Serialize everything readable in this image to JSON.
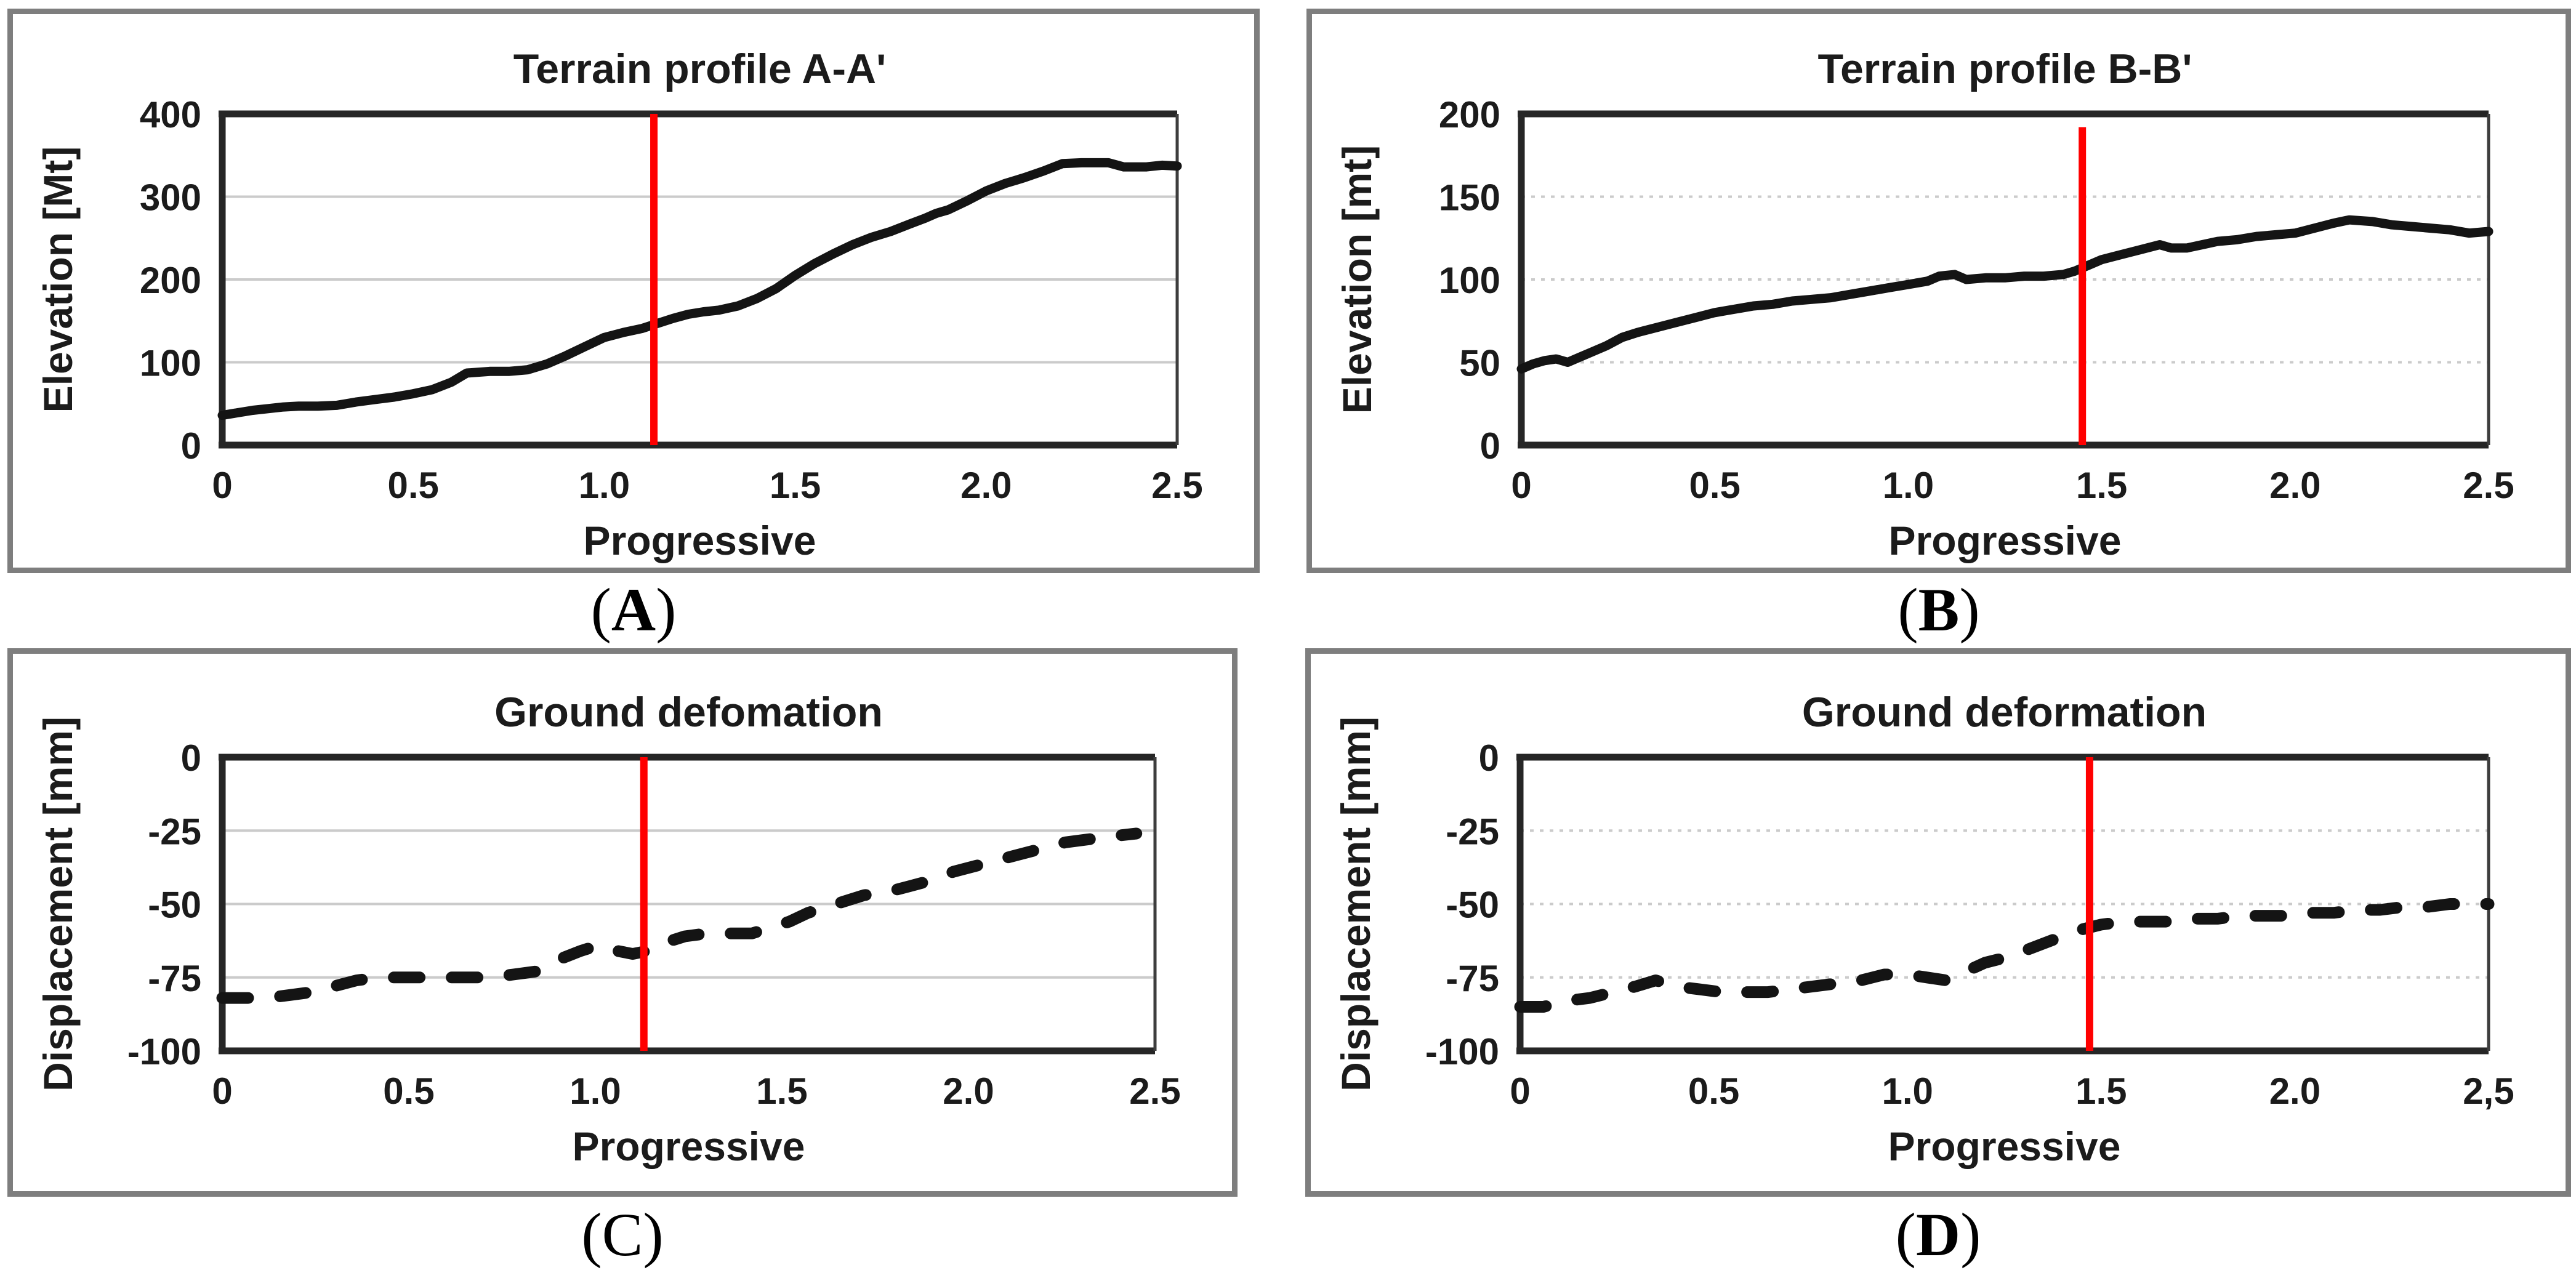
{
  "figure": {
    "background": "#ffffff",
    "panel_border_color": "#7e7e7e",
    "marker_color": "#ff0000",
    "series_color": "#141414"
  },
  "captions": [
    {
      "open": "(",
      "letter": "A",
      "close": ")",
      "bold": true
    },
    {
      "open": "(",
      "letter": "B",
      "close": ")",
      "bold": true
    },
    {
      "open": "(",
      "letter": "C",
      "close": ")",
      "bold": false
    },
    {
      "open": "(",
      "letter": "D",
      "close": ")",
      "bold": true
    }
  ],
  "chart_data": [
    {
      "id": "terrain-profile-a",
      "type": "line",
      "title": "Terrain profile A-A'",
      "xlabel": "Progressive",
      "ylabel": "Elevation [Mt]",
      "xlim": [
        0,
        2.5
      ],
      "ylim": [
        0,
        400
      ],
      "x_tick_values": [
        0,
        0.5,
        1,
        1.5,
        2,
        2.5
      ],
      "x_tick_labels": [
        "0",
        "0.5",
        "1.0",
        "1.5",
        "2.0",
        "2.5"
      ],
      "y_tick_values": [
        0,
        100,
        200,
        300,
        400
      ],
      "y_tick_labels": [
        "0",
        "100",
        "200",
        "300",
        "400"
      ],
      "grid_y": [
        100,
        200,
        300
      ],
      "grid_dotted": false,
      "legend": "none",
      "line_style": "solid",
      "line_color": "#141414",
      "marker_line": {
        "x": 1.13,
        "y1": 400,
        "y2": 0,
        "color": "#ff0000"
      },
      "points": [
        [
          0,
          36
        ],
        [
          0.04,
          39
        ],
        [
          0.08,
          42
        ],
        [
          0.12,
          44
        ],
        [
          0.16,
          46
        ],
        [
          0.2,
          47
        ],
        [
          0.25,
          47
        ],
        [
          0.3,
          48
        ],
        [
          0.35,
          52
        ],
        [
          0.4,
          55
        ],
        [
          0.45,
          58
        ],
        [
          0.5,
          62
        ],
        [
          0.55,
          67
        ],
        [
          0.6,
          76
        ],
        [
          0.64,
          87
        ],
        [
          0.7,
          89
        ],
        [
          0.75,
          89
        ],
        [
          0.8,
          91
        ],
        [
          0.85,
          98
        ],
        [
          0.9,
          108
        ],
        [
          0.95,
          119
        ],
        [
          1,
          130
        ],
        [
          1.05,
          136
        ],
        [
          1.1,
          141
        ],
        [
          1.14,
          147
        ],
        [
          1.18,
          153
        ],
        [
          1.22,
          158
        ],
        [
          1.26,
          161
        ],
        [
          1.3,
          163
        ],
        [
          1.35,
          168
        ],
        [
          1.4,
          177
        ],
        [
          1.45,
          189
        ],
        [
          1.5,
          205
        ],
        [
          1.55,
          219
        ],
        [
          1.6,
          231
        ],
        [
          1.65,
          242
        ],
        [
          1.7,
          251
        ],
        [
          1.75,
          258
        ],
        [
          1.8,
          267
        ],
        [
          1.84,
          274
        ],
        [
          1.87,
          280
        ],
        [
          1.9,
          284
        ],
        [
          1.95,
          295
        ],
        [
          2,
          307
        ],
        [
          2.05,
          316
        ],
        [
          2.1,
          323
        ],
        [
          2.15,
          331
        ],
        [
          2.2,
          340
        ],
        [
          2.25,
          341
        ],
        [
          2.32,
          341
        ],
        [
          2.36,
          336
        ],
        [
          2.42,
          336
        ],
        [
          2.46,
          338
        ],
        [
          2.5,
          337
        ]
      ]
    },
    {
      "id": "terrain-profile-b",
      "type": "line",
      "title": "Terrain profile B-B'",
      "xlabel": "Progressive",
      "ylabel": "Elevation [mt]",
      "xlim": [
        0,
        2.5
      ],
      "ylim": [
        0,
        200
      ],
      "x_tick_values": [
        0,
        0.5,
        1,
        1.5,
        2,
        2.5
      ],
      "x_tick_labels": [
        "0",
        "0.5",
        "1.0",
        "1.5",
        "2.0",
        "2.5"
      ],
      "y_tick_values": [
        0,
        50,
        100,
        150,
        200
      ],
      "y_tick_labels": [
        "0",
        "50",
        "100",
        "150",
        "200"
      ],
      "grid_y": [
        50,
        100,
        150
      ],
      "grid_dotted": true,
      "legend": "none",
      "line_style": "solid",
      "line_color": "#141414",
      "marker_line": {
        "x": 1.45,
        "y1": 192,
        "y2": 0,
        "color": "#ff0000"
      },
      "points": [
        [
          0,
          46
        ],
        [
          0.03,
          49
        ],
        [
          0.06,
          51
        ],
        [
          0.09,
          52
        ],
        [
          0.12,
          50
        ],
        [
          0.15,
          53
        ],
        [
          0.18,
          56
        ],
        [
          0.22,
          60
        ],
        [
          0.26,
          65
        ],
        [
          0.3,
          68
        ],
        [
          0.35,
          71
        ],
        [
          0.4,
          74
        ],
        [
          0.45,
          77
        ],
        [
          0.5,
          80
        ],
        [
          0.55,
          82
        ],
        [
          0.6,
          84
        ],
        [
          0.65,
          85
        ],
        [
          0.7,
          87
        ],
        [
          0.75,
          88
        ],
        [
          0.8,
          89
        ],
        [
          0.85,
          91
        ],
        [
          0.9,
          93
        ],
        [
          0.95,
          95
        ],
        [
          1,
          97
        ],
        [
          1.05,
          99
        ],
        [
          1.08,
          102
        ],
        [
          1.12,
          103
        ],
        [
          1.15,
          100
        ],
        [
          1.2,
          101
        ],
        [
          1.25,
          101
        ],
        [
          1.3,
          102
        ],
        [
          1.35,
          102
        ],
        [
          1.4,
          103
        ],
        [
          1.43,
          105
        ],
        [
          1.47,
          109
        ],
        [
          1.5,
          112
        ],
        [
          1.55,
          115
        ],
        [
          1.6,
          118
        ],
        [
          1.65,
          121
        ],
        [
          1.68,
          119
        ],
        [
          1.72,
          119
        ],
        [
          1.76,
          121
        ],
        [
          1.8,
          123
        ],
        [
          1.85,
          124
        ],
        [
          1.9,
          126
        ],
        [
          1.95,
          127
        ],
        [
          2,
          128
        ],
        [
          2.05,
          131
        ],
        [
          2.1,
          134
        ],
        [
          2.14,
          136
        ],
        [
          2.2,
          135
        ],
        [
          2.25,
          133
        ],
        [
          2.3,
          132
        ],
        [
          2.35,
          131
        ],
        [
          2.4,
          130
        ],
        [
          2.45,
          128
        ],
        [
          2.5,
          129
        ]
      ]
    },
    {
      "id": "ground-deformation-c",
      "type": "line",
      "title": "Ground defomation",
      "xlabel": "Progressive",
      "ylabel": "Displacement [mm]",
      "xlim": [
        0,
        2.5
      ],
      "ylim": [
        -100,
        0
      ],
      "x_tick_values": [
        0,
        0.5,
        1,
        1.5,
        2,
        2.5
      ],
      "x_tick_labels": [
        "0",
        "0.5",
        "1.0",
        "1.5",
        "2.0",
        "2.5"
      ],
      "y_tick_values": [
        0,
        -25,
        -50,
        -75,
        -100
      ],
      "y_tick_labels": [
        "0",
        "-25",
        "-50",
        "-75",
        "-100"
      ],
      "grid_y": [
        -25,
        -50,
        -75
      ],
      "grid_dotted": false,
      "legend": "none",
      "line_style": "dashed",
      "line_color": "#141414",
      "marker_line": {
        "x": 1.13,
        "y1": 0,
        "y2": -100,
        "color": "#ff0000"
      },
      "points": [
        [
          0,
          -82
        ],
        [
          0.06,
          -82
        ],
        [
          0.12,
          -82
        ],
        [
          0.18,
          -81
        ],
        [
          0.24,
          -80
        ],
        [
          0.3,
          -78
        ],
        [
          0.36,
          -76
        ],
        [
          0.42,
          -75
        ],
        [
          0.5,
          -75
        ],
        [
          0.58,
          -75
        ],
        [
          0.66,
          -75
        ],
        [
          0.72,
          -75
        ],
        [
          0.78,
          -74
        ],
        [
          0.84,
          -73
        ],
        [
          0.9,
          -69
        ],
        [
          0.96,
          -66
        ],
        [
          1.01,
          -64
        ],
        [
          1.06,
          -66
        ],
        [
          1.1,
          -67
        ],
        [
          1.14,
          -66
        ],
        [
          1.19,
          -63
        ],
        [
          1.24,
          -61
        ],
        [
          1.3,
          -60
        ],
        [
          1.36,
          -60
        ],
        [
          1.42,
          -60
        ],
        [
          1.47,
          -58
        ],
        [
          1.52,
          -56
        ],
        [
          1.57,
          -53
        ],
        [
          1.62,
          -51
        ],
        [
          1.67,
          -49
        ],
        [
          1.72,
          -47
        ],
        [
          1.78,
          -46
        ],
        [
          1.84,
          -44
        ],
        [
          1.9,
          -42
        ],
        [
          1.96,
          -39
        ],
        [
          2.02,
          -37
        ],
        [
          2.08,
          -35
        ],
        [
          2.14,
          -33
        ],
        [
          2.2,
          -31
        ],
        [
          2.26,
          -29
        ],
        [
          2.32,
          -28
        ],
        [
          2.38,
          -27
        ],
        [
          2.45,
          -26
        ]
      ]
    },
    {
      "id": "ground-deformation-d",
      "type": "line",
      "title": "Ground deformation",
      "xlabel": "Progressive",
      "ylabel": "Displacement [mm]",
      "xlim": [
        0,
        2.5
      ],
      "ylim": [
        -100,
        0
      ],
      "x_tick_values": [
        0,
        0.5,
        1,
        1.5,
        2,
        2.5
      ],
      "x_tick_labels": [
        "0",
        "0.5",
        "1.0",
        "1.5",
        "2.0",
        "2,5"
      ],
      "y_tick_values": [
        0,
        -25,
        -50,
        -75,
        -100
      ],
      "y_tick_labels": [
        "0",
        "-25",
        "-50",
        "-75",
        "-100"
      ],
      "grid_y": [
        -25,
        -50,
        -75
      ],
      "grid_dotted": true,
      "legend": "none",
      "line_style": "dashed",
      "line_color": "#141414",
      "marker_line": {
        "x": 1.47,
        "y1": 0,
        "y2": -100,
        "color": "#ff0000"
      },
      "points": [
        [
          0,
          -85
        ],
        [
          0.06,
          -85
        ],
        [
          0.12,
          -83
        ],
        [
          0.18,
          -82
        ],
        [
          0.24,
          -80
        ],
        [
          0.3,
          -78
        ],
        [
          0.35,
          -76
        ],
        [
          0.4,
          -78
        ],
        [
          0.46,
          -79
        ],
        [
          0.52,
          -80
        ],
        [
          0.58,
          -80
        ],
        [
          0.64,
          -80
        ],
        [
          0.7,
          -79
        ],
        [
          0.76,
          -78
        ],
        [
          0.82,
          -77
        ],
        [
          0.88,
          -76
        ],
        [
          0.94,
          -74
        ],
        [
          1,
          -74
        ],
        [
          1.05,
          -75
        ],
        [
          1.1,
          -76
        ],
        [
          1.15,
          -73
        ],
        [
          1.2,
          -70
        ],
        [
          1.26,
          -68
        ],
        [
          1.32,
          -65
        ],
        [
          1.38,
          -62
        ],
        [
          1.44,
          -59
        ],
        [
          1.5,
          -57
        ],
        [
          1.56,
          -56
        ],
        [
          1.62,
          -56
        ],
        [
          1.68,
          -56
        ],
        [
          1.74,
          -55
        ],
        [
          1.8,
          -55
        ],
        [
          1.86,
          -54
        ],
        [
          1.92,
          -54
        ],
        [
          1.98,
          -54
        ],
        [
          2.04,
          -53
        ],
        [
          2.1,
          -53
        ],
        [
          2.16,
          -52
        ],
        [
          2.22,
          -52
        ],
        [
          2.28,
          -51
        ],
        [
          2.34,
          -51
        ],
        [
          2.4,
          -50
        ],
        [
          2.45,
          -50
        ],
        [
          2.5,
          -50
        ]
      ]
    }
  ]
}
